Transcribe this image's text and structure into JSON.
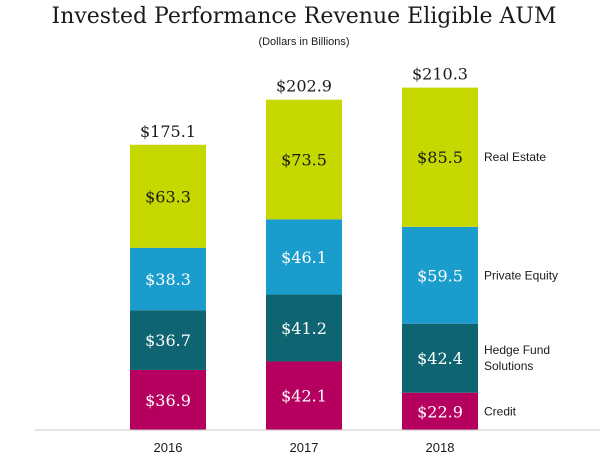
{
  "chart_data": {
    "type": "bar",
    "stacked": true,
    "title": "Invested Performance Revenue Eligible AUM",
    "subtitle": "(Dollars in Billions)",
    "categories": [
      "2016",
      "2017",
      "2018"
    ],
    "totals": [
      175.1,
      202.9,
      210.3
    ],
    "total_labels": [
      "$175.1",
      "$202.9",
      "$210.3"
    ],
    "series": [
      {
        "name": "Credit",
        "values": [
          36.9,
          42.1,
          22.9
        ],
        "labels": [
          "$36.9",
          "$42.1",
          "$22.9"
        ],
        "color": "#b5005f"
      },
      {
        "name": "Hedge Fund Solutions",
        "values": [
          36.7,
          41.2,
          42.4
        ],
        "labels": [
          "$36.7",
          "$41.2",
          "$42.4"
        ],
        "color": "#0e6470"
      },
      {
        "name": "Private Equity",
        "values": [
          38.3,
          46.1,
          59.5
        ],
        "labels": [
          "$38.3",
          "$46.1",
          "$59.5"
        ],
        "color": "#1a9ccc"
      },
      {
        "name": "Real Estate",
        "values": [
          63.3,
          73.5,
          85.5
        ],
        "labels": [
          "$63.3",
          "$73.5",
          "$85.5"
        ],
        "color": "#c5d800"
      }
    ],
    "legend_lines": [
      [
        "Credit"
      ],
      [
        "Hedge Fund",
        "Solutions"
      ],
      [
        "Private Equity"
      ],
      [
        "Real Estate"
      ]
    ],
    "legend_placement": "right",
    "grid": false,
    "axis_line_color": "#c8c8c8"
  }
}
